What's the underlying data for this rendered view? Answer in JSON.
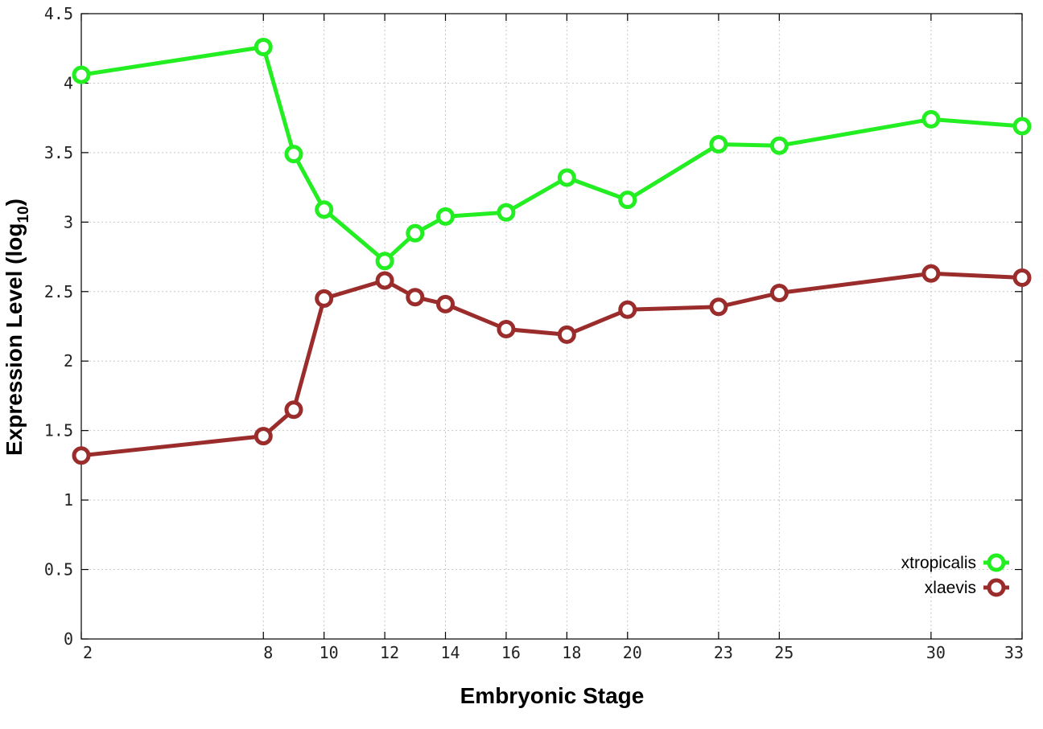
{
  "chart_data": {
    "type": "line",
    "title": "",
    "xlabel": "Embryonic Stage",
    "ylabel": "Expression Level (log",
    "ylabel_sub": "10",
    "ylabel_suffix": ")",
    "x": [
      2,
      8,
      9,
      10,
      12,
      13,
      14,
      16,
      18,
      20,
      23,
      25,
      30,
      33
    ],
    "x_ticks": [
      2,
      8,
      10,
      12,
      14,
      16,
      18,
      20,
      23,
      25,
      30,
      33
    ],
    "x_tick_labels": [
      "2",
      "8",
      "10",
      "12",
      "14",
      "16",
      "18",
      "20",
      "23",
      "25",
      "30",
      "33"
    ],
    "xlim": [
      2,
      33
    ],
    "ylim": [
      0,
      4.5
    ],
    "y_ticks": [
      0,
      0.5,
      1,
      1.5,
      2,
      2.5,
      3,
      3.5,
      4,
      4.5
    ],
    "y_tick_labels": [
      "0",
      "0.5",
      "1",
      "1.5",
      "2",
      "2.5",
      "3",
      "3.5",
      "4",
      "4.5"
    ],
    "grid": true,
    "legend_position": "bottom-right",
    "series": [
      {
        "name": "xtropicalis",
        "color": "#22ee22",
        "marker": "circle",
        "values": [
          4.06,
          4.26,
          3.49,
          3.09,
          2.72,
          2.92,
          3.04,
          3.07,
          3.32,
          3.16,
          3.56,
          3.55,
          3.74,
          3.69
        ]
      },
      {
        "name": "xlaevis",
        "color": "#9b2c2c",
        "marker": "circle",
        "values": [
          1.32,
          1.46,
          1.65,
          2.45,
          2.58,
          2.46,
          2.41,
          2.23,
          2.19,
          2.37,
          2.39,
          2.49,
          2.63,
          2.6
        ]
      }
    ]
  }
}
